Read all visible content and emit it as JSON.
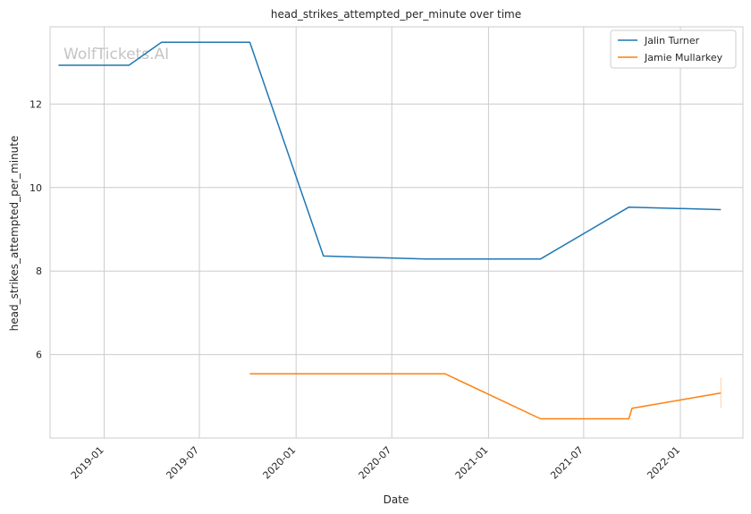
{
  "chart_data": {
    "type": "line",
    "title": "head_strikes_attempted_per_minute over time",
    "xlabel": "Date",
    "ylabel": "head_strikes_attempted_per_minute",
    "watermark": "WolfTickets.AI",
    "x_axis_type": "date",
    "xlim": [
      "2018-09-20",
      "2022-04-30"
    ],
    "ylim": [
      4.0,
      13.85
    ],
    "x_ticks": [
      "2019-01",
      "2019-07",
      "2020-01",
      "2020-07",
      "2021-01",
      "2021-07",
      "2022-01"
    ],
    "y_ticks": [
      6,
      8,
      10,
      12
    ],
    "grid": true,
    "legend_position": "top-right",
    "series": [
      {
        "name": "Jalin Turner",
        "color": "#1f77b4",
        "points": [
          {
            "x": "2018-10-06",
            "y": 12.93
          },
          {
            "x": "2019-02-17",
            "y": 12.93
          },
          {
            "x": "2019-04-20",
            "y": 13.48
          },
          {
            "x": "2019-10-05",
            "y": 13.48
          },
          {
            "x": "2020-02-22",
            "y": 8.36
          },
          {
            "x": "2020-09-05",
            "y": 8.29
          },
          {
            "x": "2021-04-10",
            "y": 8.29
          },
          {
            "x": "2021-09-25",
            "y": 9.53
          },
          {
            "x": "2022-03-19",
            "y": 9.47
          }
        ]
      },
      {
        "name": "Jamie Mullarkey",
        "color": "#ff7f0e",
        "points": [
          {
            "x": "2019-10-05",
            "y": 5.54
          },
          {
            "x": "2020-10-10",
            "y": 5.54
          },
          {
            "x": "2021-04-10",
            "y": 4.46
          },
          {
            "x": "2021-09-25",
            "y": 4.46
          },
          {
            "x": "2021-10-01",
            "y": 4.71
          },
          {
            "x": "2022-03-19",
            "y": 5.08
          }
        ],
        "error_bar": {
          "x": "2022-03-19",
          "low": 4.72,
          "high": 5.45
        }
      }
    ]
  }
}
